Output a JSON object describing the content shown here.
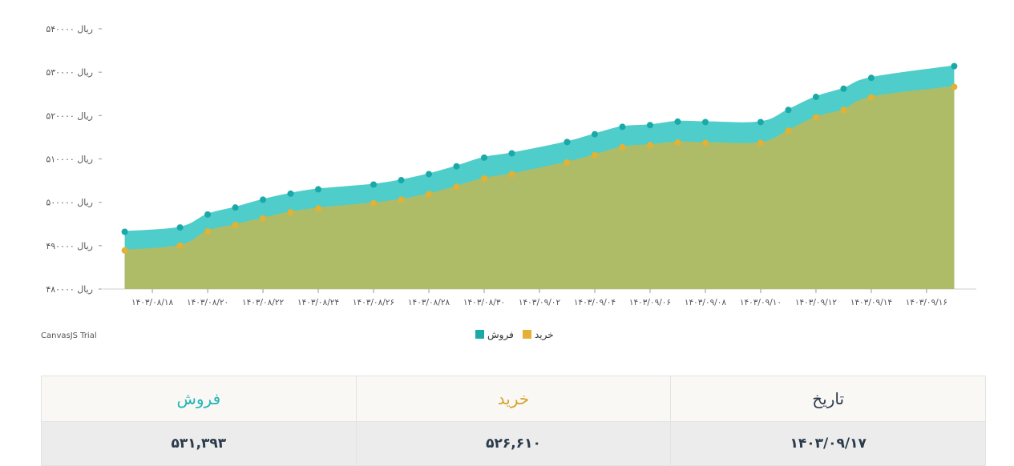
{
  "chart_data": {
    "type": "area",
    "y_unit": "ریال",
    "ylim": [
      480000,
      540000
    ],
    "yticks": [
      "۴۸۰۰۰۰",
      "۴۹۰۰۰۰",
      "۵۰۰۰۰۰",
      "۵۱۰۰۰۰",
      "۵۲۰۰۰۰",
      "۵۳۰۰۰۰",
      "۵۴۰۰۰۰"
    ],
    "ytick_values": [
      480000,
      490000,
      500000,
      510000,
      520000,
      530000,
      540000
    ],
    "xticks": [
      "۱۴۰۳/۰۸/۱۸",
      "۱۴۰۳/۰۸/۲۰",
      "۱۴۰۳/۰۸/۲۲",
      "۱۴۰۳/۰۸/۲۴",
      "۱۴۰۳/۰۸/۲۶",
      "۱۴۰۳/۰۸/۲۸",
      "۱۴۰۳/۰۸/۳۰",
      "۱۴۰۳/۰۹/۰۲",
      "۱۴۰۳/۰۹/۰۴",
      "۱۴۰۳/۰۹/۰۶",
      "۱۴۰۳/۰۹/۰۸",
      "۱۴۰۳/۰۹/۱۰",
      "۱۴۰۳/۰۹/۱۲",
      "۱۴۰۳/۰۹/۱۴",
      "۱۴۰۳/۰۹/۱۶"
    ],
    "xtick_days": [
      18,
      20,
      22,
      24,
      26,
      28,
      30,
      32,
      34,
      36,
      38,
      40,
      42,
      44,
      46
    ],
    "x_day_range": [
      16.2,
      47.8
    ],
    "x": [
      "1403/08/17",
      "1403/08/19",
      "1403/08/20",
      "1403/08/21",
      "1403/08/22",
      "1403/08/23",
      "1403/08/24",
      "1403/08/26",
      "1403/08/27",
      "1403/08/28",
      "1403/08/29",
      "1403/08/30",
      "1403/09/01",
      "1403/09/03",
      "1403/09/04",
      "1403/09/05",
      "1403/09/06",
      "1403/09/07",
      "1403/09/08",
      "1403/09/10",
      "1403/09/11",
      "1403/09/12",
      "1403/09/13",
      "1403/09/14",
      "1403/09/17"
    ],
    "x_days": [
      17,
      19,
      20,
      21,
      22,
      23,
      24,
      26,
      27,
      28,
      29,
      30,
      31,
      33,
      34,
      35,
      36,
      37,
      38,
      40,
      41,
      42,
      43,
      44,
      47
    ],
    "series": [
      {
        "name": "فروش",
        "color": "#4ecdcb",
        "marker_color": "#1aa9a8",
        "values": [
          493200,
          494200,
          497200,
          498800,
          500600,
          502000,
          503000,
          504100,
          505100,
          506500,
          508300,
          510300,
          511300,
          513900,
          515700,
          517400,
          517800,
          518600,
          518500,
          518500,
          521300,
          524300,
          526200,
          528700,
          531393
        ]
      },
      {
        "name": "خرید",
        "color": "#afbc67",
        "marker_color": "#e3b134",
        "values": [
          488900,
          490000,
          493300,
          494800,
          496300,
          497700,
          498600,
          499800,
          500600,
          501900,
          503600,
          505500,
          506500,
          509200,
          510900,
          512700,
          513200,
          513800,
          513700,
          513700,
          516500,
          519600,
          521300,
          524200,
          526610
        ]
      }
    ],
    "legend": [
      "فروش",
      "خرید"
    ],
    "legend_position": "bottom-center",
    "grid": false
  },
  "watermark": "CanvasJS Trial",
  "table": {
    "headers": {
      "sell": "فروش",
      "buy": "خرید",
      "date": "تاریخ"
    },
    "header_colors": {
      "sell": "#22b5b5",
      "buy": "#d4a42c",
      "date": "#2b3a4a"
    },
    "row": {
      "sell": "۵۳۱,۳۹۳",
      "buy": "۵۲۶,۶۱۰",
      "date": "۱۴۰۳/۰۹/۱۷"
    }
  }
}
